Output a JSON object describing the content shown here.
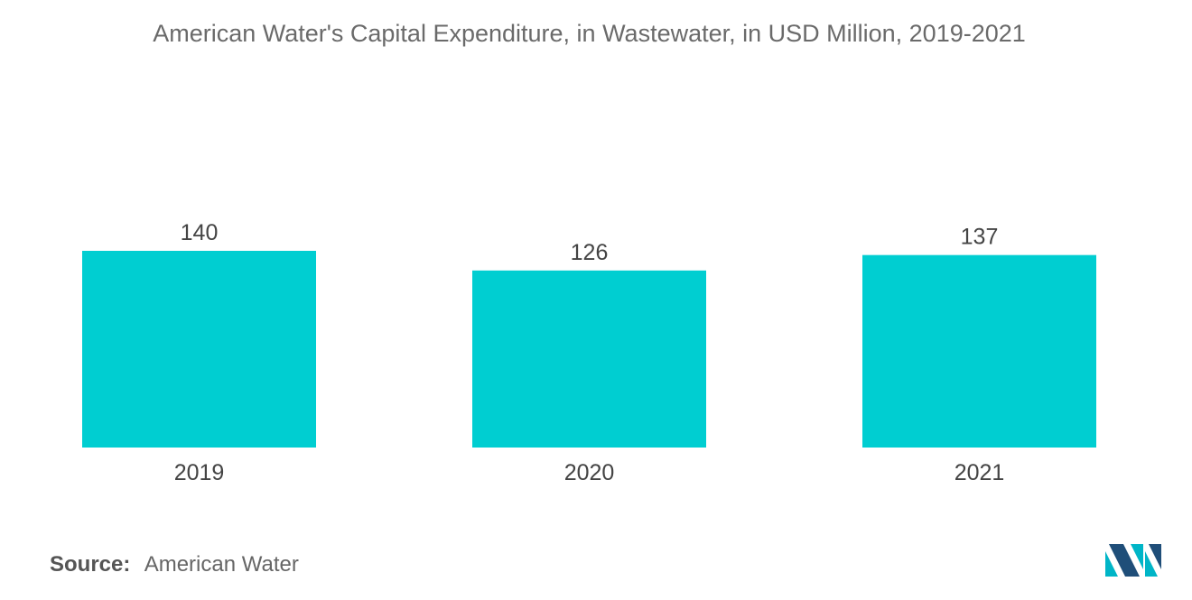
{
  "title": "American Water's Capital Expenditure, in Wastewater, in USD Million, 2019-2021",
  "chart_data": {
    "type": "bar",
    "categories": [
      "2019",
      "2020",
      "2021"
    ],
    "values": [
      140,
      126,
      137
    ],
    "data_labels": [
      "140",
      "126",
      "137"
    ],
    "title": "American Water's Capital Expenditure, in Wastewater, in USD Million, 2019-2021",
    "xlabel": "",
    "ylabel": "",
    "ylim": [
      0,
      140
    ],
    "grid": false,
    "legend": "none",
    "bar_color": "#00ced1"
  },
  "source": {
    "label": "Source:",
    "value": "American Water"
  },
  "logo": {
    "icon": "mordor-intelligence-logo-icon",
    "colors": [
      "#1f4e79",
      "#00b5c7"
    ]
  }
}
